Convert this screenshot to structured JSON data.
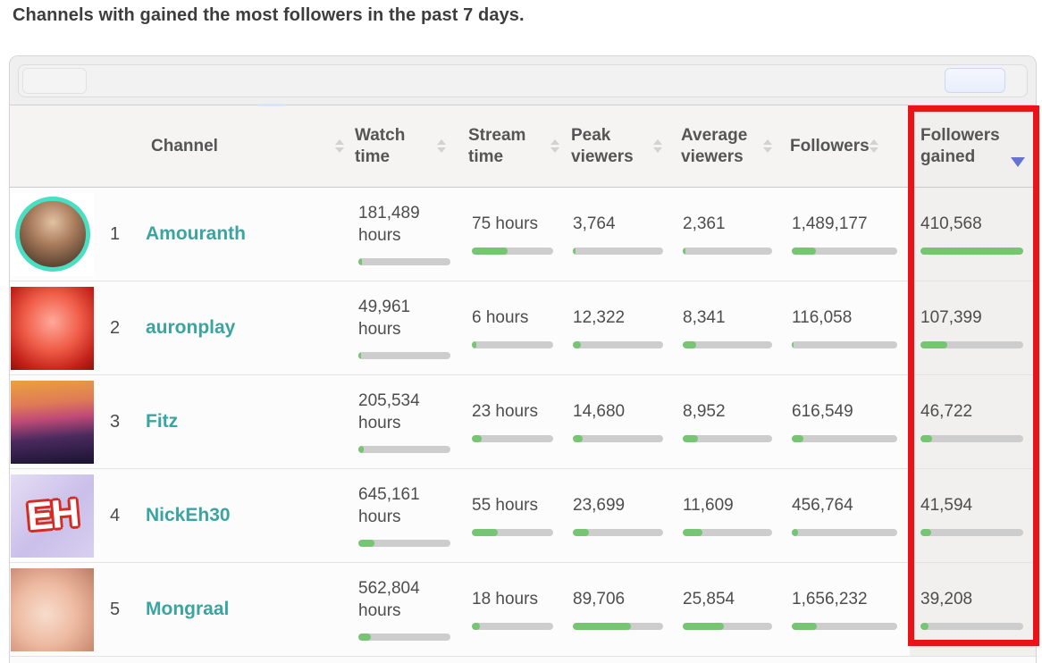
{
  "page": {
    "title": "Channels with gained the most followers in the past 7 days."
  },
  "table": {
    "columns": [
      {
        "label": "Channel",
        "sortable": true,
        "sorted": ""
      },
      {
        "label": "Watch time",
        "sortable": true,
        "sorted": ""
      },
      {
        "label": "Stream time",
        "sortable": true,
        "sorted": ""
      },
      {
        "label": "Peak viewers",
        "sortable": true,
        "sorted": ""
      },
      {
        "label": "Average viewers",
        "sortable": true,
        "sorted": ""
      },
      {
        "label": "Followers",
        "sortable": true,
        "sorted": ""
      },
      {
        "label": "Followers gained",
        "sortable": true,
        "sorted": "desc",
        "highlighted": true
      }
    ],
    "rows": [
      {
        "rank": "1",
        "channel": "Amouranth",
        "watch_time": "181,489 hours",
        "stream_time": "75 hours",
        "peak_viewers": "3,764",
        "average_viewers": "2,361",
        "followers": "1,489,177",
        "followers_gained": "410,568",
        "bars": {
          "watch": 4,
          "stream": 44,
          "peak": 3,
          "avg": 3,
          "followers": 23,
          "gained": 100
        }
      },
      {
        "rank": "2",
        "channel": "auronplay",
        "watch_time": "49,961 hours",
        "stream_time": "6 hours",
        "peak_viewers": "12,322",
        "average_viewers": "8,341",
        "followers": "116,058",
        "followers_gained": "107,399",
        "bars": {
          "watch": 3,
          "stream": 5,
          "peak": 9,
          "avg": 15,
          "followers": 2,
          "gained": 26
        }
      },
      {
        "rank": "3",
        "channel": "Fitz",
        "watch_time": "205,534 hours",
        "stream_time": "23 hours",
        "peak_viewers": "14,680",
        "average_viewers": "8,952",
        "followers": "616,549",
        "followers_gained": "46,722",
        "bars": {
          "watch": 6,
          "stream": 12,
          "peak": 11,
          "avg": 17,
          "followers": 11,
          "gained": 11
        }
      },
      {
        "rank": "4",
        "channel": "NickEh30",
        "avatar_text": "EH",
        "watch_time": "645,161 hours",
        "stream_time": "55 hours",
        "peak_viewers": "23,699",
        "average_viewers": "11,609",
        "followers": "456,764",
        "followers_gained": "41,594",
        "bars": {
          "watch": 17,
          "stream": 32,
          "peak": 18,
          "avg": 22,
          "followers": 6,
          "gained": 10
        }
      },
      {
        "rank": "5",
        "channel": "Mongraal",
        "watch_time": "562,804 hours",
        "stream_time": "18 hours",
        "peak_viewers": "89,706",
        "average_viewers": "25,854",
        "followers": "1,656,232",
        "followers_gained": "39,208",
        "bars": {
          "watch": 14,
          "stream": 10,
          "peak": 64,
          "avg": 46,
          "followers": 24,
          "gained": 8
        }
      }
    ]
  },
  "annotation": {
    "shape": "rectangle",
    "color": "#ea1418",
    "target": "followers-gained-column"
  },
  "colors": {
    "accent_teal": "#3ba4a1",
    "bar_green": "#76c573",
    "bar_track": "#cdcdcd",
    "sort_active_arrow": "#6673d2"
  }
}
